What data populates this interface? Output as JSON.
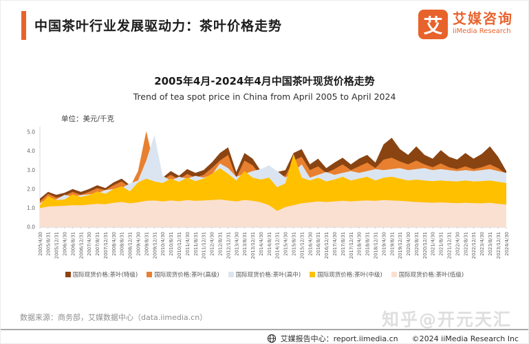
{
  "header": {
    "title": "中国茶叶行业发展驱动力：茶叶价格走势",
    "accent_color": "#E8622C",
    "logo": {
      "icon_char": "艾",
      "name_cn": "艾媒咨询",
      "name_en": "iiMedia Research"
    }
  },
  "chart": {
    "title": "2005年4月-2024年4月中国茶叶现货价格走势",
    "subtitle": "Trend of tea spot price in China from April 2005 to April 2024",
    "unit_label": "单位：美元/千克"
  },
  "chart_data": {
    "type": "area",
    "overlapping": true,
    "title": "2005年4月-2024年4月中国茶叶现货价格走势",
    "subtitle": "Trend of tea spot price in China from April 2005 to April 2024",
    "xlabel": "",
    "ylabel": "美元/千克",
    "ylim": [
      0.0,
      5.4
    ],
    "yticks": [
      0,
      1,
      2,
      3,
      4,
      5
    ],
    "grid": false,
    "legend_position": "bottom",
    "x": [
      "2005/4/30",
      "2005/8/31",
      "2005/12/31",
      "2006/4/30",
      "2006/8/31",
      "2006/12/31",
      "2007/4/30",
      "2007/8/31",
      "2007/12/31",
      "2008/4/30",
      "2008/8/31",
      "2008/12/31",
      "2009/4/30",
      "2009/8/31",
      "2009/12/31",
      "2010/4/30",
      "2010/8/31",
      "2010/12/31",
      "2011/4/30",
      "2011/8/31",
      "2011/12/31",
      "2012/4/30",
      "2012/8/31",
      "2012/12/31",
      "2013/4/30",
      "2013/8/31",
      "2013/12/31",
      "2014/4/30",
      "2014/8/31",
      "2014/12/31",
      "2015/4/30",
      "2015/8/31",
      "2015/12/31",
      "2016/4/30",
      "2016/8/31",
      "2016/12/31",
      "2017/4/30",
      "2017/8/31",
      "2017/12/31",
      "2018/4/30",
      "2018/8/31",
      "2018/12/31",
      "2019/4/30",
      "2019/8/31",
      "2019/12/31",
      "2020/4/30",
      "2020/8/31",
      "2020/12/31",
      "2021/4/30",
      "2021/8/31",
      "2021/12/31",
      "2022/4/30",
      "2022/8/31",
      "2022/12/31",
      "2023/4/30",
      "2023/8/31",
      "2023/12/31",
      "2024/4/30"
    ],
    "series": [
      {
        "name": "国际现货价格:茶叶(特级)",
        "color": "#8A4412",
        "values": [
          1.5,
          1.85,
          1.7,
          1.8,
          2.0,
          1.85,
          2.0,
          2.2,
          2.05,
          2.35,
          2.55,
          2.2,
          2.7,
          3.1,
          2.8,
          2.6,
          2.95,
          2.7,
          3.05,
          2.85,
          3.0,
          3.4,
          3.9,
          4.2,
          2.9,
          3.9,
          3.6,
          2.95,
          3.1,
          2.9,
          3.0,
          3.9,
          4.1,
          3.3,
          3.6,
          3.1,
          3.4,
          3.65,
          3.3,
          3.6,
          3.8,
          3.4,
          4.35,
          4.7,
          4.1,
          3.8,
          4.25,
          3.8,
          3.6,
          4.05,
          3.7,
          3.55,
          3.9,
          3.6,
          3.85,
          4.25,
          3.7,
          2.95
        ]
      },
      {
        "name": "国际现货价格:茶叶(高级)",
        "color": "#E8802F",
        "values": [
          1.35,
          1.75,
          1.55,
          1.65,
          1.85,
          1.7,
          1.85,
          2.05,
          1.95,
          2.2,
          2.4,
          2.1,
          2.95,
          5.05,
          3.2,
          2.5,
          2.75,
          2.5,
          2.8,
          2.6,
          2.75,
          3.1,
          3.5,
          3.8,
          2.6,
          3.5,
          3.25,
          2.7,
          2.85,
          2.65,
          2.7,
          3.5,
          3.7,
          3.0,
          3.2,
          2.85,
          3.05,
          3.3,
          3.0,
          3.2,
          3.4,
          3.1,
          3.55,
          3.65,
          3.45,
          3.3,
          3.5,
          3.3,
          3.15,
          3.35,
          3.15,
          3.05,
          3.2,
          3.05,
          3.15,
          3.3,
          3.1,
          2.8
        ]
      },
      {
        "name": "国际现货价格:茶叶(高中)",
        "color": "#DBE5F1",
        "values": [
          1.25,
          1.5,
          1.45,
          1.7,
          1.6,
          1.68,
          1.72,
          1.78,
          1.95,
          2.0,
          2.05,
          2.3,
          2.45,
          3.5,
          4.85,
          2.7,
          2.45,
          2.65,
          2.55,
          2.7,
          2.6,
          2.75,
          3.35,
          3.1,
          2.65,
          2.8,
          2.95,
          3.05,
          3.25,
          2.95,
          2.6,
          2.9,
          3.3,
          2.6,
          2.75,
          2.9,
          2.75,
          2.85,
          2.95,
          2.85,
          2.95,
          3.05,
          3.0,
          3.05,
          3.1,
          3.0,
          3.05,
          3.1,
          3.0,
          3.05,
          3.0,
          2.95,
          3.0,
          2.95,
          3.0,
          3.05,
          2.95,
          2.85
        ]
      },
      {
        "name": "国际现货价格:茶叶(中级)",
        "color": "#FFC000",
        "values": [
          1.15,
          1.62,
          1.42,
          1.45,
          1.72,
          1.58,
          1.68,
          1.88,
          1.75,
          2.0,
          2.15,
          1.88,
          2.35,
          2.55,
          2.4,
          2.32,
          2.55,
          2.38,
          2.6,
          2.42,
          2.55,
          2.8,
          3.1,
          2.8,
          2.45,
          2.95,
          2.6,
          2.5,
          2.6,
          2.1,
          2.3,
          3.85,
          2.6,
          2.45,
          2.6,
          2.4,
          2.5,
          2.65,
          2.45,
          2.55,
          2.65,
          2.45,
          2.6,
          2.65,
          2.55,
          2.45,
          2.5,
          2.45,
          2.42,
          2.45,
          2.42,
          2.4,
          2.45,
          2.4,
          2.42,
          2.45,
          2.38,
          2.32
        ]
      },
      {
        "name": "国际现货价格:茶叶(低级)",
        "color": "#FAE0D0",
        "values": [
          1.0,
          1.08,
          1.1,
          1.12,
          1.15,
          1.14,
          1.18,
          1.22,
          1.2,
          1.28,
          1.32,
          1.25,
          1.3,
          1.38,
          1.4,
          1.35,
          1.4,
          1.36,
          1.42,
          1.38,
          1.4,
          1.42,
          1.45,
          1.4,
          1.35,
          1.42,
          1.38,
          1.3,
          1.15,
          0.85,
          1.05,
          1.15,
          1.25,
          1.3,
          1.35,
          1.32,
          1.35,
          1.38,
          1.35,
          1.38,
          1.4,
          1.38,
          1.42,
          1.4,
          1.38,
          1.35,
          1.32,
          1.3,
          1.28,
          1.3,
          1.28,
          1.26,
          1.28,
          1.26,
          1.25,
          1.28,
          1.22,
          1.18
        ]
      }
    ]
  },
  "footer": {
    "source": "数据来源：商务部，艾媒数据中心（data.iimedia.cn）",
    "watermark": "知乎@开元天汇",
    "report_center": "艾媒报告中心：report.iimedia.cn",
    "copyright": "©2024  iiMedia Research  Inc"
  }
}
